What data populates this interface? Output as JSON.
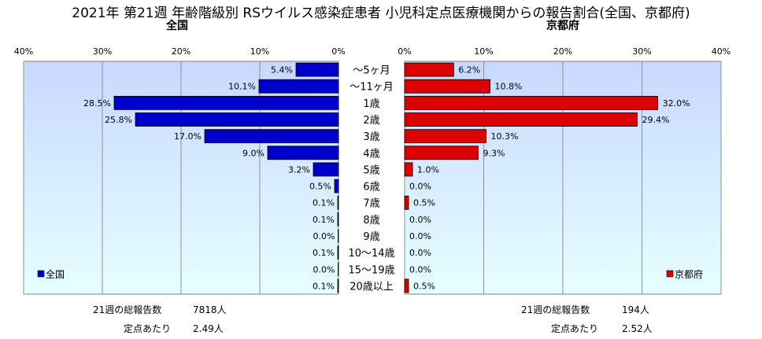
{
  "title": "2021年 第21週 年齢階級別 RSウイルス感染症患者 小児科定点医療機関からの報告割合(全国、京都府)",
  "colors": {
    "national": "#0000cc",
    "kyoto": "#dd0000",
    "plot_bg_top": "#c8d8ff",
    "plot_bg_bottom": "#e6ffff"
  },
  "chart_data": [
    {
      "type": "bar",
      "orientation": "horizontal",
      "direction": "right-to-left",
      "title": "全国",
      "xlim": [
        0,
        40
      ],
      "ticks": [
        "40%",
        "30%",
        "20%",
        "10%",
        "0%"
      ],
      "legend": "全国",
      "legend_position": "bottom-left",
      "grid": true,
      "categories": [
        "～5ヶ月",
        "～11ヶ月",
        "1歳",
        "2歳",
        "3歳",
        "4歳",
        "5歳",
        "6歳",
        "7歳",
        "8歳",
        "9歳",
        "10～14歳",
        "15～19歳",
        "20歳以上"
      ],
      "values": [
        5.4,
        10.1,
        28.5,
        25.8,
        17.0,
        9.0,
        3.2,
        0.5,
        0.1,
        0.1,
        0.0,
        0.1,
        0.0,
        0.1
      ],
      "labels": [
        "5.4%",
        "10.1%",
        "28.5%",
        "25.8%",
        "17.0%",
        "9.0%",
        "3.2%",
        "0.5%",
        "0.1%",
        "0.1%",
        "0.0%",
        "0.1%",
        "0.0%",
        "0.1%"
      ]
    },
    {
      "type": "bar",
      "orientation": "horizontal",
      "direction": "left-to-right",
      "title": "京都府",
      "xlim": [
        0,
        40
      ],
      "ticks": [
        "0%",
        "10%",
        "20%",
        "30%",
        "40%"
      ],
      "legend": "京都府",
      "legend_position": "bottom-right",
      "grid": true,
      "categories": [
        "～5ヶ月",
        "～11ヶ月",
        "1歳",
        "2歳",
        "3歳",
        "4歳",
        "5歳",
        "6歳",
        "7歳",
        "8歳",
        "9歳",
        "10～14歳",
        "15～19歳",
        "20歳以上"
      ],
      "values": [
        6.2,
        10.8,
        32.0,
        29.4,
        10.3,
        9.3,
        1.0,
        0.0,
        0.5,
        0.0,
        0.0,
        0.0,
        0.0,
        0.5
      ],
      "labels": [
        "6.2%",
        "10.8%",
        "32.0%",
        "29.4%",
        "10.3%",
        "9.3%",
        "1.0%",
        "0.0%",
        "0.5%",
        "0.0%",
        "0.0%",
        "0.0%",
        "0.0%",
        "0.5%"
      ]
    }
  ],
  "footer": {
    "national": {
      "week_label": "21週の総報告数",
      "total": "7818人",
      "per_label": "定点あたり",
      "per_value": "2.49人"
    },
    "kyoto": {
      "week_label": "21週の総報告数",
      "total": "194人",
      "per_label": "定点あたり",
      "per_value": "2.52人"
    }
  }
}
